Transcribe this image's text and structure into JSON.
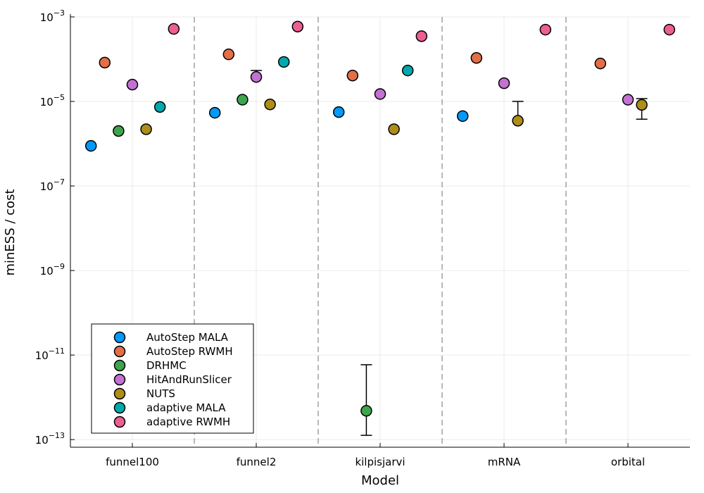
{
  "chart_data": {
    "type": "scatter",
    "x_label": "Model",
    "y_label": "minESS / cost",
    "categories": [
      "funnel100",
      "funnel2",
      "kilpisjarvi",
      "mRNA",
      "orbital"
    ],
    "log_y": true,
    "grid": true,
    "legend_position": "bottom-left",
    "ylim": [
      6.6e-14,
      0.001
    ],
    "yticks": [
      {
        "value": 0.001,
        "label": "10",
        "exponent": "−3"
      },
      {
        "value": 1e-05,
        "label": "10",
        "exponent": "−5"
      },
      {
        "value": 1e-07,
        "label": "10",
        "exponent": "−7"
      },
      {
        "value": 1e-09,
        "label": "10",
        "exponent": "−9"
      },
      {
        "value": 1e-11,
        "label": "10",
        "exponent": "−11"
      },
      {
        "value": 1e-13,
        "label": "10",
        "exponent": "−13"
      }
    ],
    "series": [
      {
        "name": "AutoStep MALA",
        "color": "#009AFA",
        "values": [
          8.9e-07,
          5.4e-06,
          5.6e-06,
          4.5e-06,
          null
        ],
        "upper": [
          null,
          null,
          null,
          null,
          null
        ],
        "lower": [
          null,
          null,
          null,
          null,
          null
        ]
      },
      {
        "name": "AutoStep RWMH",
        "color": "#E36F47",
        "values": [
          8.3e-05,
          0.00013,
          4.1e-05,
          0.000107,
          7.9e-05
        ],
        "upper": [
          null,
          null,
          null,
          null,
          null
        ],
        "lower": [
          null,
          null,
          null,
          null,
          null
        ]
      },
      {
        "name": "DRHMC",
        "color": "#3EA44E",
        "values": [
          2e-06,
          1.1e-05,
          4.8e-13,
          null,
          null
        ],
        "upper": [
          null,
          null,
          5.9e-12,
          null,
          null
        ],
        "lower": [
          null,
          null,
          1.26e-13,
          null,
          null
        ]
      },
      {
        "name": "HitAndRunSlicer",
        "color": "#C371D2",
        "values": [
          2.5e-05,
          3.8e-05,
          1.5e-05,
          2.7e-05,
          1.1e-05
        ],
        "upper": [
          null,
          5.4e-05,
          null,
          null,
          null
        ],
        "lower": [
          null,
          null,
          null,
          null,
          null
        ]
      },
      {
        "name": "NUTS",
        "color": "#AC8E18",
        "values": [
          2.2e-06,
          8.5e-06,
          2.2e-06,
          3.5e-06,
          8.3e-06
        ],
        "upper": [
          null,
          null,
          null,
          1e-05,
          1.17e-05
        ],
        "lower": [
          null,
          null,
          null,
          null,
          3.8e-06
        ]
      },
      {
        "name": "adaptive MALA",
        "color": "#00A9AD",
        "values": [
          7.4e-06,
          8.6e-05,
          5.4e-05,
          null,
          null
        ],
        "upper": [
          null,
          null,
          null,
          null,
          null
        ],
        "lower": [
          null,
          null,
          null,
          null,
          null
        ]
      },
      {
        "name": "adaptive RWMH",
        "color": "#ED5E93",
        "values": [
          0.00052,
          0.00059,
          0.00035,
          0.0005,
          0.0005
        ],
        "upper": [
          null,
          null,
          null,
          null,
          null
        ],
        "lower": [
          null,
          null,
          null,
          null,
          null
        ]
      }
    ]
  }
}
